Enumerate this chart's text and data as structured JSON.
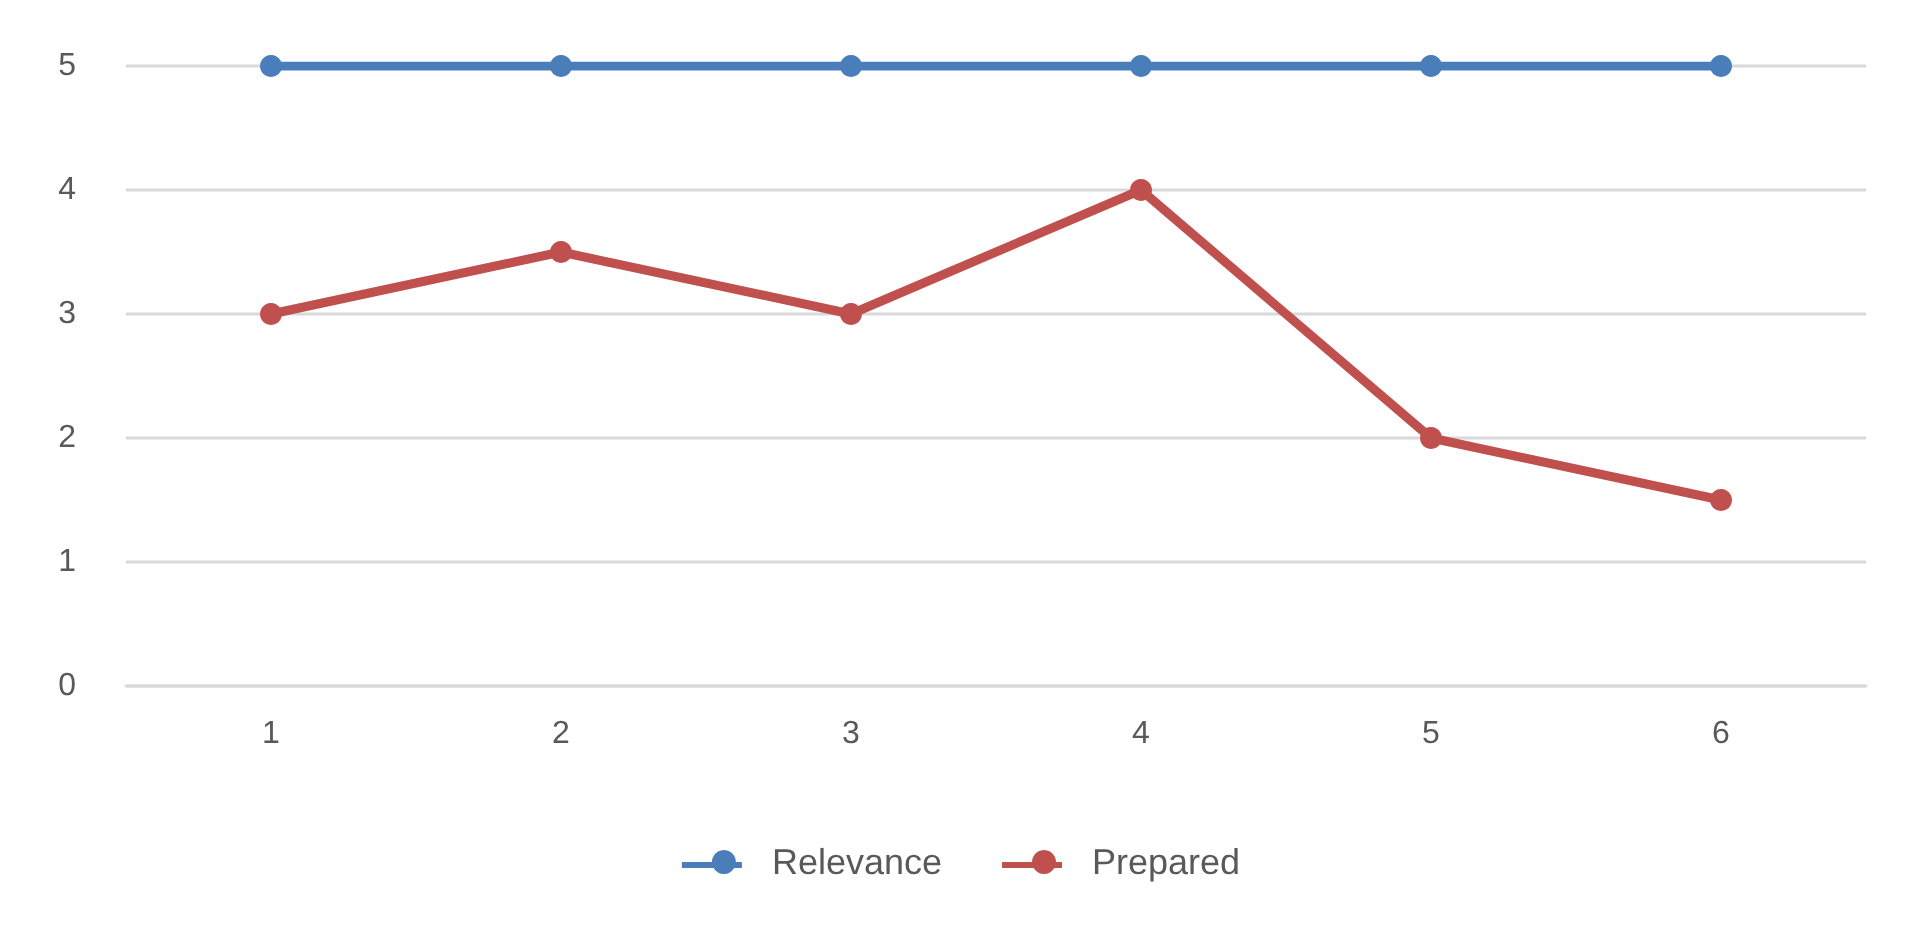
{
  "chart_data": {
    "type": "line",
    "categories": [
      "1",
      "2",
      "3",
      "4",
      "5",
      "6"
    ],
    "series": [
      {
        "name": "Relevance",
        "color": "#4a7ebb",
        "values": [
          5,
          5,
          5,
          5,
          5,
          5
        ]
      },
      {
        "name": "Prepared",
        "color": "#c0504d",
        "values": [
          3,
          3.5,
          3,
          4,
          2,
          1.5
        ]
      }
    ],
    "ylim": [
      0,
      5
    ],
    "yticks": [
      0,
      1,
      2,
      3,
      4,
      5
    ],
    "grid": "y",
    "legend": "bottom",
    "marker": "circle",
    "line_style": "solid"
  }
}
